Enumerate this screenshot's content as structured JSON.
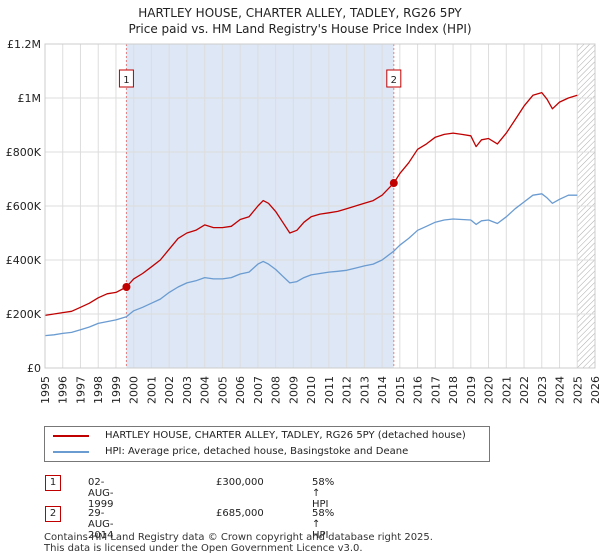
{
  "title_line1": "HARTLEY HOUSE, CHARTER ALLEY, TADLEY, RG26 5PY",
  "title_line2": "Price paid vs. HM Land Registry's House Price Index (HPI)",
  "colors": {
    "property": "#c00000",
    "hpi": "#6a9bd1",
    "shade": "#dde7f5",
    "grid": "#dddddd",
    "vline": "#e08080"
  },
  "chart_data": {
    "type": "line",
    "title": "Price paid vs. HM Land Registry's House Price Index (HPI)",
    "xlabel": "",
    "ylabel": "",
    "xlim": [
      1995,
      2026
    ],
    "ylim": [
      0,
      1200000
    ],
    "grid": true,
    "x_ticks": [
      "1995",
      "1996",
      "1997",
      "1998",
      "1999",
      "2000",
      "2001",
      "2002",
      "2003",
      "2004",
      "2005",
      "2006",
      "2007",
      "2008",
      "2009",
      "2010",
      "2011",
      "2012",
      "2013",
      "2014",
      "2015",
      "2016",
      "2017",
      "2018",
      "2019",
      "2020",
      "2021",
      "2022",
      "2023",
      "2024",
      "2025",
      "2026"
    ],
    "y_ticks": [
      {
        "value": 0,
        "label": "£0"
      },
      {
        "value": 200000,
        "label": "£200K"
      },
      {
        "value": 400000,
        "label": "£400K"
      },
      {
        "value": 600000,
        "label": "£600K"
      },
      {
        "value": 800000,
        "label": "£800K"
      },
      {
        "value": 1000000,
        "label": "£1M"
      },
      {
        "value": 1200000,
        "label": "£1.2M"
      }
    ],
    "shaded_range": [
      1999.59,
      2014.66
    ],
    "future_hatch_from": 2025.0,
    "series": [
      {
        "name": "HARTLEY HOUSE, CHARTER ALLEY, TADLEY, RG26 5PY (detached house)",
        "color": "#c00000",
        "x": [
          1995.0,
          1995.5,
          1996.0,
          1996.5,
          1997.0,
          1997.5,
          1998.0,
          1998.5,
          1999.0,
          1999.59,
          2000.0,
          2000.5,
          2001.0,
          2001.5,
          2002.0,
          2002.5,
          2003.0,
          2003.5,
          2004.0,
          2004.5,
          2005.0,
          2005.5,
          2006.0,
          2006.5,
          2007.0,
          2007.3,
          2007.6,
          2008.0,
          2008.4,
          2008.8,
          2009.2,
          2009.6,
          2010.0,
          2010.5,
          2011.0,
          2011.5,
          2012.0,
          2012.5,
          2013.0,
          2013.5,
          2014.0,
          2014.66,
          2015.0,
          2015.5,
          2016.0,
          2016.5,
          2017.0,
          2017.5,
          2018.0,
          2018.5,
          2019.0,
          2019.3,
          2019.6,
          2020.0,
          2020.5,
          2021.0,
          2021.5,
          2022.0,
          2022.5,
          2023.0,
          2023.3,
          2023.6,
          2024.0,
          2024.5,
          2025.0
        ],
        "values": [
          195000,
          200000,
          205000,
          210000,
          225000,
          240000,
          260000,
          275000,
          280000,
          300000,
          330000,
          350000,
          375000,
          400000,
          440000,
          480000,
          500000,
          510000,
          530000,
          520000,
          520000,
          525000,
          550000,
          560000,
          600000,
          620000,
          610000,
          580000,
          540000,
          500000,
          510000,
          540000,
          560000,
          570000,
          575000,
          580000,
          590000,
          600000,
          610000,
          620000,
          640000,
          685000,
          720000,
          760000,
          810000,
          830000,
          855000,
          865000,
          870000,
          865000,
          860000,
          820000,
          845000,
          850000,
          830000,
          870000,
          920000,
          970000,
          1010000,
          1020000,
          995000,
          960000,
          985000,
          1000000,
          1010000
        ]
      },
      {
        "name": "HPI: Average price, detached house, Basingstoke and Deane",
        "color": "#6a9bd1",
        "x": [
          1995.0,
          1995.5,
          1996.0,
          1996.5,
          1997.0,
          1997.5,
          1998.0,
          1998.5,
          1999.0,
          1999.59,
          2000.0,
          2000.5,
          2001.0,
          2001.5,
          2002.0,
          2002.5,
          2003.0,
          2003.5,
          2004.0,
          2004.5,
          2005.0,
          2005.5,
          2006.0,
          2006.5,
          2007.0,
          2007.3,
          2007.6,
          2008.0,
          2008.4,
          2008.8,
          2009.2,
          2009.6,
          2010.0,
          2010.5,
          2011.0,
          2011.5,
          2012.0,
          2012.5,
          2013.0,
          2013.5,
          2014.0,
          2014.66,
          2015.0,
          2015.5,
          2016.0,
          2016.5,
          2017.0,
          2017.5,
          2018.0,
          2018.5,
          2019.0,
          2019.3,
          2019.6,
          2020.0,
          2020.5,
          2021.0,
          2021.5,
          2022.0,
          2022.5,
          2023.0,
          2023.3,
          2023.6,
          2024.0,
          2024.5,
          2025.0
        ],
        "values": [
          120000,
          123000,
          128000,
          132000,
          142000,
          152000,
          165000,
          172000,
          178000,
          190000,
          212000,
          225000,
          240000,
          255000,
          280000,
          300000,
          315000,
          323000,
          335000,
          330000,
          330000,
          335000,
          348000,
          355000,
          385000,
          395000,
          385000,
          365000,
          340000,
          315000,
          320000,
          335000,
          345000,
          350000,
          355000,
          358000,
          362000,
          370000,
          378000,
          385000,
          400000,
          433000,
          455000,
          480000,
          510000,
          525000,
          540000,
          548000,
          552000,
          550000,
          548000,
          532000,
          545000,
          548000,
          535000,
          560000,
          590000,
          615000,
          640000,
          645000,
          630000,
          610000,
          625000,
          640000,
          640000
        ]
      }
    ],
    "sales": [
      {
        "id": "1",
        "x": 1999.59,
        "value": 300000
      },
      {
        "id": "2",
        "x": 2014.66,
        "value": 685000
      }
    ]
  },
  "legend": {
    "property_label": "HARTLEY HOUSE, CHARTER ALLEY, TADLEY, RG26 5PY (detached house)",
    "hpi_label": "HPI: Average price, detached house, Basingstoke and Deane"
  },
  "sales_table": [
    {
      "id": "1",
      "date": "02-AUG-1999",
      "price": "£300,000",
      "hpi": "58% ↑ HPI"
    },
    {
      "id": "2",
      "date": "29-AUG-2014",
      "price": "£685,000",
      "hpi": "58% ↑ HPI"
    }
  ],
  "footer": {
    "line1": "Contains HM Land Registry data © Crown copyright and database right 2025.",
    "line2": "This data is licensed under the Open Government Licence v3.0."
  }
}
